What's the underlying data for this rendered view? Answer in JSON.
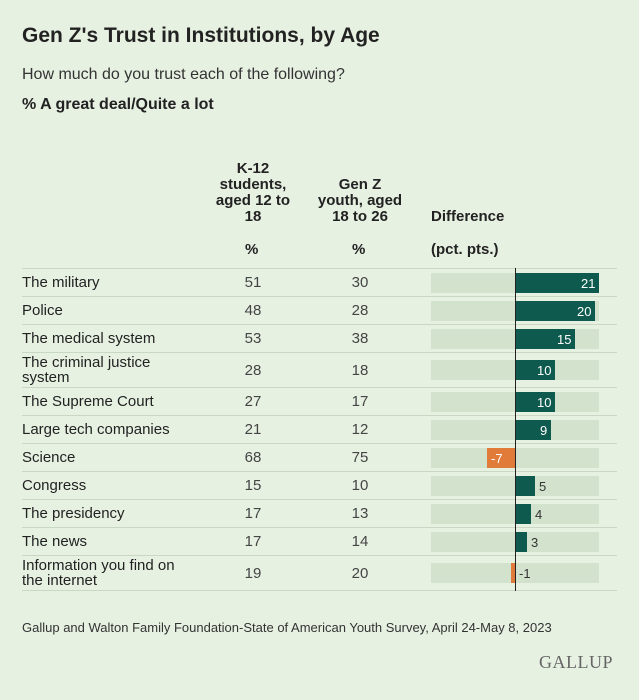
{
  "chart_data": {
    "type": "table-bar",
    "title": "Gen Z's Trust in Institutions, by Age",
    "subtitle": "How much do you trust each of the following?",
    "measure": "% A great deal/Quite a lot",
    "columns": [
      "K-12 students, aged 12 to 18",
      "Gen Z youth, aged 18 to 26",
      "Difference"
    ],
    "units": [
      "%",
      "%",
      "(pct. pts.)"
    ],
    "categories": [
      "The military",
      "Police",
      "The medical system",
      "The criminal justice system",
      "The Supreme Court",
      "Large tech companies",
      "Science",
      "Congress",
      "The presidency",
      "The news",
      "Information you find on the internet"
    ],
    "series": [
      {
        "name": "K-12 students, aged 12 to 18",
        "values": [
          51,
          48,
          53,
          28,
          27,
          21,
          68,
          15,
          17,
          17,
          19
        ]
      },
      {
        "name": "Gen Z youth, aged 18 to 26",
        "values": [
          30,
          28,
          38,
          18,
          17,
          12,
          75,
          10,
          13,
          14,
          20
        ]
      },
      {
        "name": "Difference",
        "values": [
          21,
          20,
          15,
          10,
          10,
          9,
          -7,
          5,
          4,
          3,
          -1
        ]
      }
    ],
    "xlim": [
      -21,
      21
    ],
    "colors": {
      "positive": "#0f5a4e",
      "negative": "#e07b39"
    },
    "source": "Gallup and Walton Family Foundation-State of American Youth Survey, April 24-May 8, 2023",
    "brand": "GALLUP"
  }
}
